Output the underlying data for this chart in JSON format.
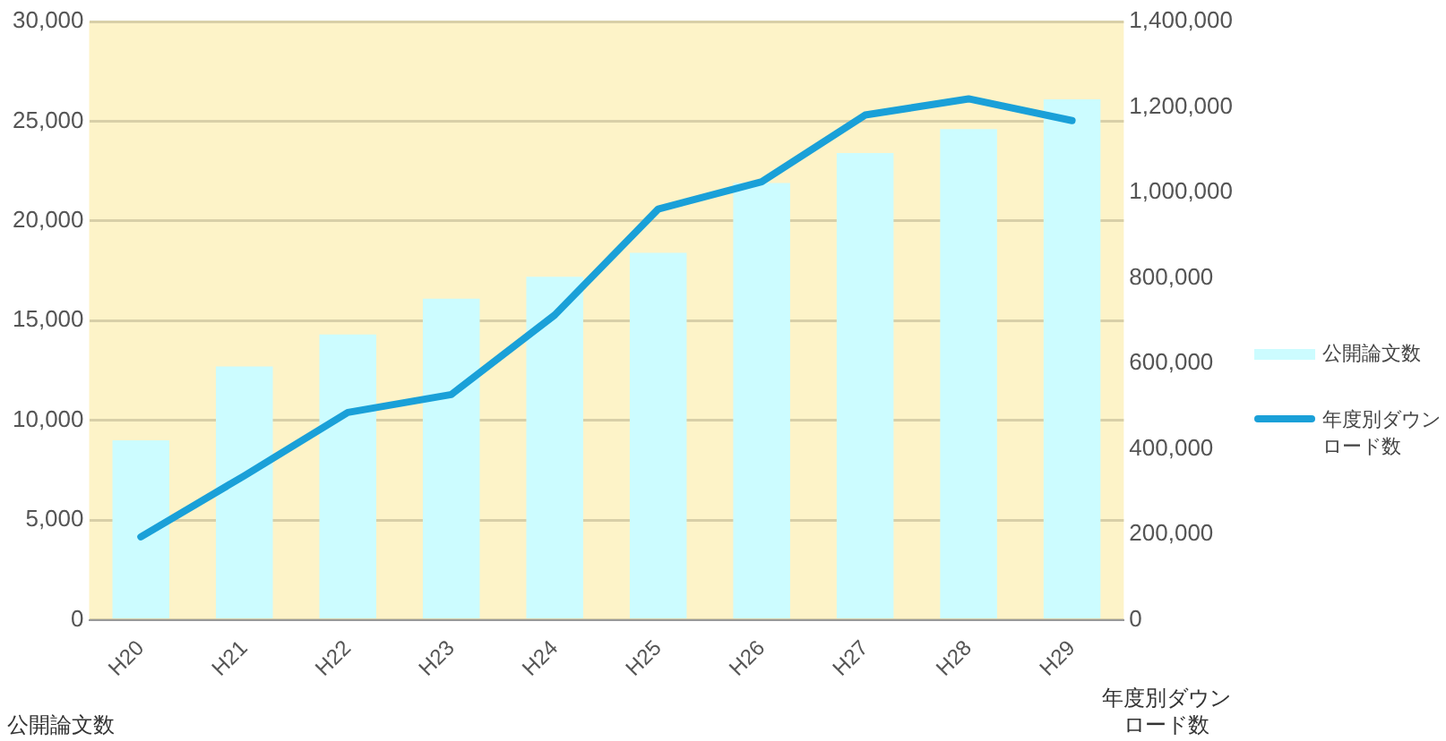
{
  "chart_data": {
    "type": "bar",
    "ylabel": "公開論文数",
    "y2label": "年度別ダウンロード数",
    "categories": [
      "H20",
      "H21",
      "H22",
      "H23",
      "H24",
      "H25",
      "H26",
      "H27",
      "H28",
      "H29"
    ],
    "series": [
      {
        "name": "公開論文数",
        "color": "#ccfcff",
        "values": [
          9000,
          12700,
          14300,
          16100,
          17200,
          18400,
          21900,
          23400,
          24600,
          26100
        ]
      },
      {
        "name": "年度別ダウンロード数",
        "type": "line",
        "axis": "y2",
        "color": "#1aa0d8",
        "values": [
          194000,
          337000,
          485000,
          527000,
          713000,
          961000,
          1025000,
          1181000,
          1219000,
          1168000
        ]
      }
    ],
    "ylim": [
      0,
      30000
    ],
    "yticks": [
      0,
      {
        "value": 5000,
        "label": "5,000"
      },
      {
        "value": 10000,
        "label": "10,000"
      },
      {
        "value": 15000,
        "label": "15,000"
      },
      {
        "value": 20000,
        "label": "20,000"
      },
      {
        "value": 25000,
        "label": "25,000"
      },
      {
        "value": 30000,
        "label": "30,000"
      }
    ],
    "y2lim": [
      0,
      1400000
    ],
    "y2ticks": [
      0,
      {
        "value": 200000,
        "label": "200,000"
      },
      {
        "value": 400000,
        "label": "400,000"
      },
      {
        "value": 600000,
        "label": "600,000"
      },
      {
        "value": 800000,
        "label": "800,000"
      },
      {
        "value": 1000000,
        "label": "1,000,000"
      },
      {
        "value": 1200000,
        "label": "1,200,000"
      },
      {
        "value": 1400000,
        "label": "1,400,000"
      }
    ],
    "grid": "y",
    "legend": "right",
    "marker": "none",
    "line_style": "solid"
  }
}
